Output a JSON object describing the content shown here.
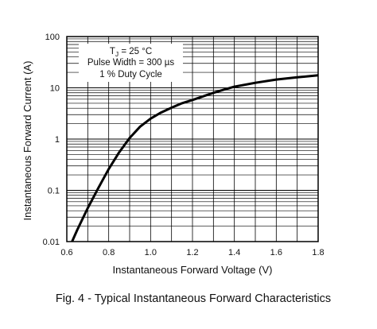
{
  "chart_data": {
    "type": "line",
    "title": "Fig. 4 - Typical Instantaneous Forward Characteristics",
    "xlabel": "Instantaneous Forward Voltage (V)",
    "ylabel": "Instantaneous Forward Current (A)",
    "xlim": [
      0.6,
      1.8
    ],
    "ylim": [
      0.01,
      100
    ],
    "yscale": "log",
    "grid": true,
    "x_ticks": [
      "0.6",
      "0.8",
      "1.0",
      "1.2",
      "1.4",
      "1.6",
      "1.8"
    ],
    "y_ticks": [
      "0.01",
      "0.1",
      "1",
      "10",
      "100"
    ],
    "annotation": {
      "tj_symbol": "T",
      "tj_sub": "J",
      "tj_value": " = 25 °C",
      "line2": "Pulse Width = 300 µs",
      "line3": "1 % Duty Cycle"
    },
    "series": [
      {
        "x": [
          0.625,
          0.65,
          0.7,
          0.75,
          0.8,
          0.85,
          0.9,
          0.95,
          1.0,
          1.05,
          1.1,
          1.15,
          1.2,
          1.25,
          1.3,
          1.35,
          1.4,
          1.5,
          1.6,
          1.7,
          1.8
        ],
        "y": [
          0.01,
          0.017,
          0.045,
          0.11,
          0.26,
          0.55,
          1.05,
          1.75,
          2.5,
          3.3,
          4.1,
          5.0,
          5.8,
          6.8,
          8.0,
          9.2,
          10.5,
          12.5,
          14.5,
          16.0,
          17.5
        ]
      }
    ]
  }
}
